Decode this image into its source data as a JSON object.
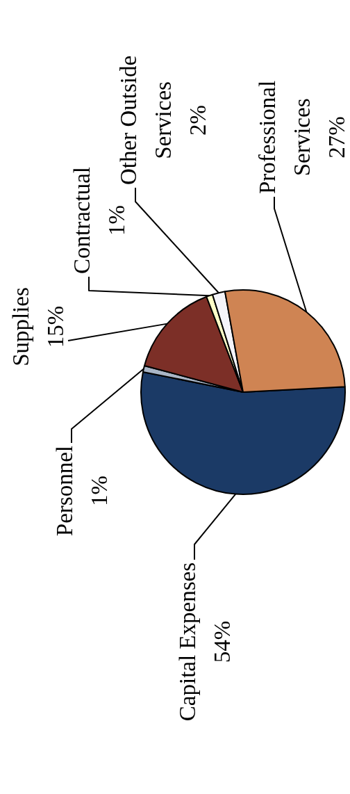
{
  "chart_data": {
    "type": "pie",
    "categories": [
      "Capital Expenses",
      "Personnel",
      "Supplies",
      "Contractual",
      "Other Outside Services",
      "Professional Services"
    ],
    "values": [
      54,
      1,
      15,
      1,
      2,
      27
    ],
    "value_labels": [
      "54%",
      "1%",
      "15%",
      "1%",
      "2%",
      "27%"
    ],
    "colors": [
      "#1b3a66",
      "#a9b5c6",
      "#7c2f27",
      "#ffffc8",
      "#f4f4fa",
      "#cf8453"
    ],
    "legend": false
  }
}
